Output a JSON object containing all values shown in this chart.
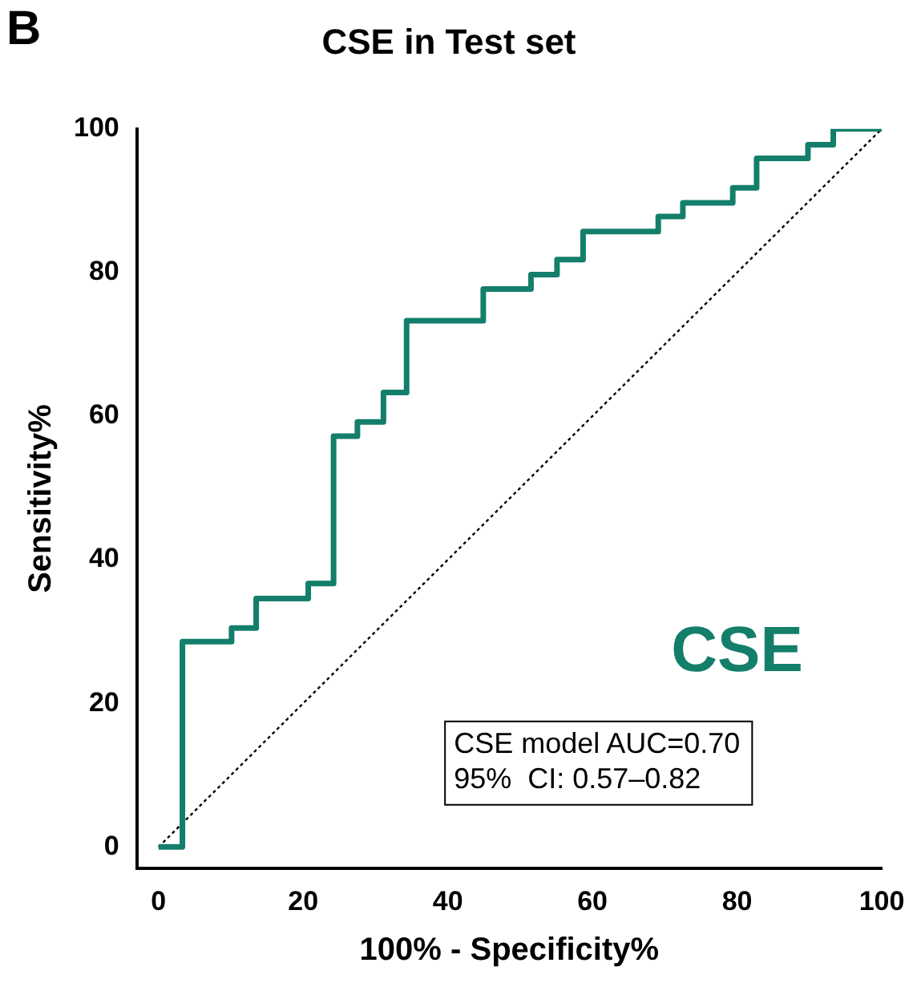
{
  "chart_data": {
    "type": "step",
    "title": "CSE in Test set",
    "xlabel": "100% - Specificity%",
    "ylabel": "Sensitivity%",
    "xlim": [
      -3,
      100
    ],
    "ylim": [
      -3,
      100
    ],
    "xticks": [
      0,
      20,
      40,
      60,
      80,
      100
    ],
    "yticks": [
      0,
      20,
      40,
      60,
      80,
      100
    ],
    "grid": false,
    "legend": false,
    "series": [
      {
        "name": "CSE",
        "color": "#137f6b",
        "x": [
          0,
          3.3,
          10.1,
          13.5,
          20.7,
          24.2,
          27.5,
          31.1,
          34.3,
          44.9,
          51.5,
          55.1,
          58.7,
          69.1,
          72.5,
          79.4,
          82.7,
          89.8,
          93.3,
          100
        ],
        "values": [
          0,
          28.6,
          30.5,
          34.6,
          36.7,
          57.2,
          59.2,
          63.3,
          73.3,
          77.7,
          79.7,
          81.8,
          85.7,
          87.8,
          89.7,
          91.8,
          95.9,
          97.8,
          100,
          100
        ]
      },
      {
        "type": "line",
        "color": "#000000",
        "line_style": "dotted",
        "x": [
          0,
          100
        ],
        "values": [
          0,
          100
        ]
      }
    ],
    "annotations": [
      "B",
      "CSE model AUC=0.70",
      "95%  CI: 0.57–0.82"
    ]
  }
}
